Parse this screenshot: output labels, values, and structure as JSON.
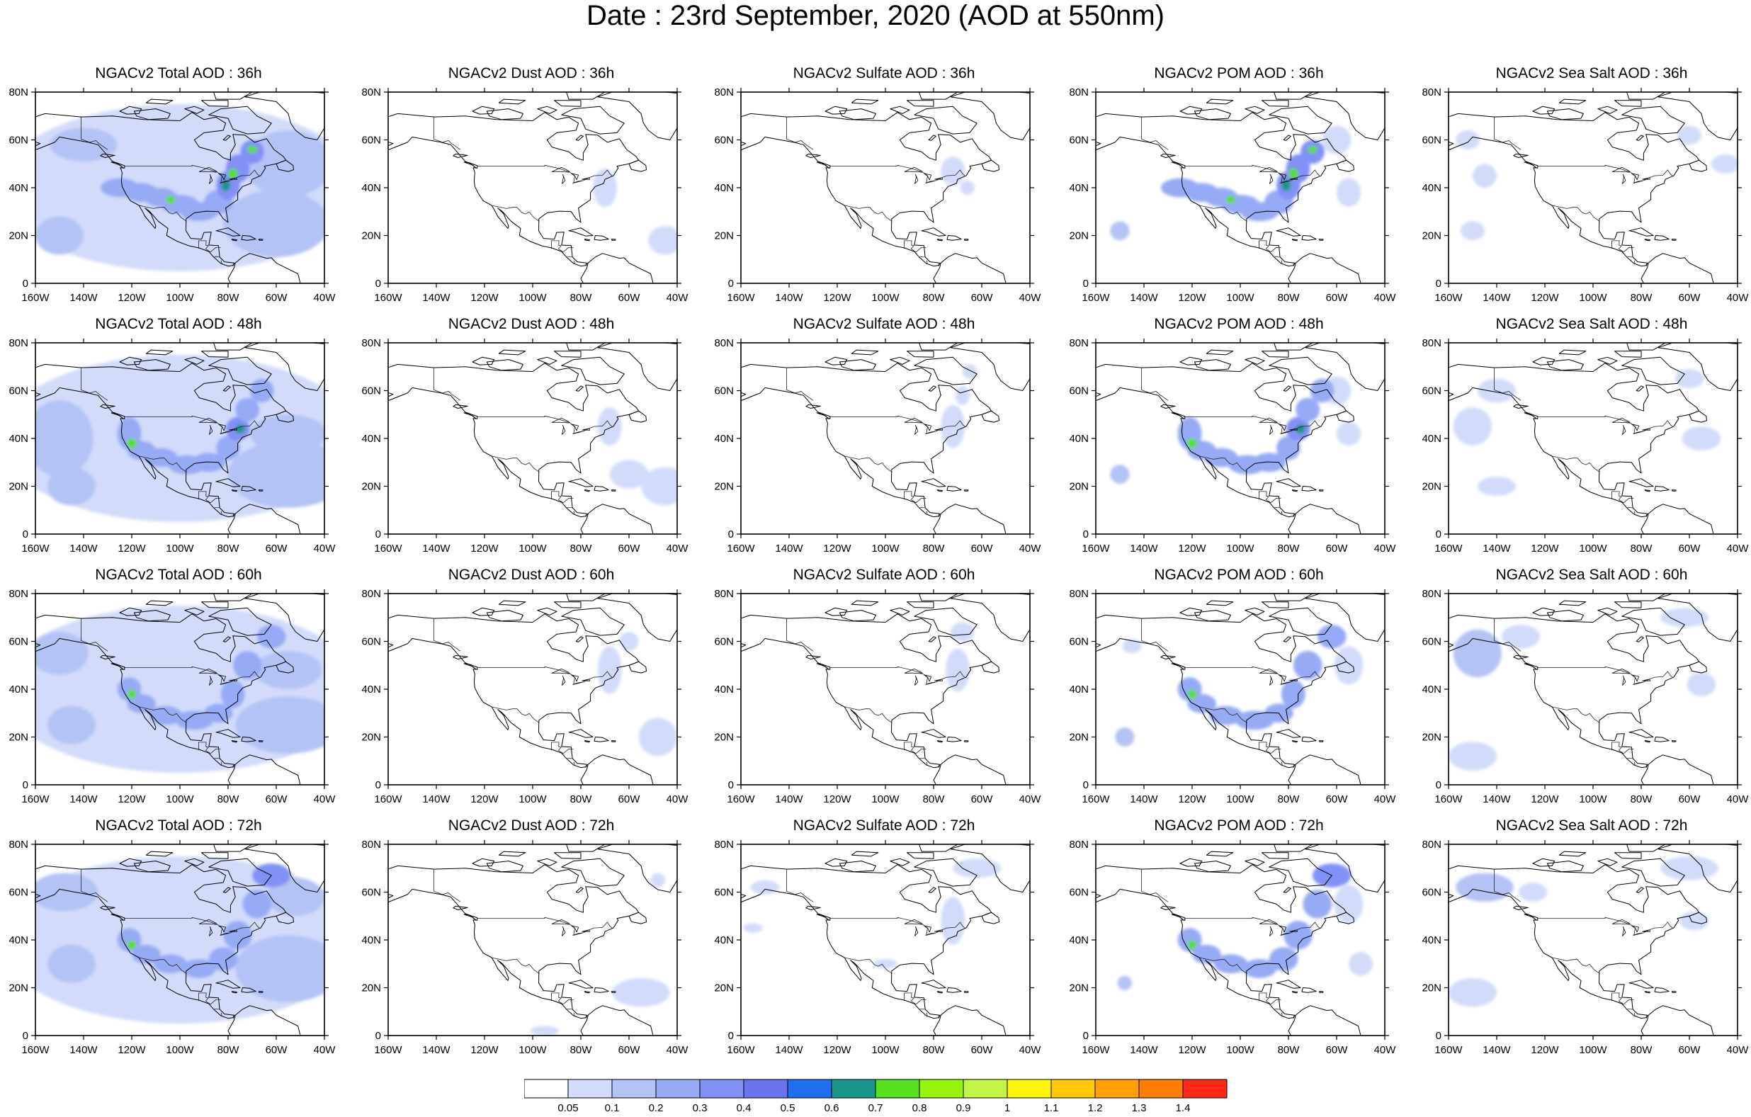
{
  "title": "Date : 23rd  September, 2020 (AOD at 550nm)",
  "panels": [
    {
      "title": "NGACv2 Total AOD : 36h",
      "species": "total",
      "hour": 36
    },
    {
      "title": "NGACv2 Dust AOD : 36h",
      "species": "dust",
      "hour": 36
    },
    {
      "title": "NGACv2 Sulfate AOD : 36h",
      "species": "sulfate",
      "hour": 36
    },
    {
      "title": "NGACv2 POM AOD : 36h",
      "species": "pom",
      "hour": 36
    },
    {
      "title": "NGACv2 Sea Salt AOD : 36h",
      "species": "seasalt",
      "hour": 36
    },
    {
      "title": "NGACv2 Total AOD : 48h",
      "species": "total",
      "hour": 48
    },
    {
      "title": "NGACv2 Dust AOD : 48h",
      "species": "dust",
      "hour": 48
    },
    {
      "title": "NGACv2 Sulfate AOD : 48h",
      "species": "sulfate",
      "hour": 48
    },
    {
      "title": "NGACv2 POM AOD : 48h",
      "species": "pom",
      "hour": 48
    },
    {
      "title": "NGACv2 Sea Salt AOD : 48h",
      "species": "seasalt",
      "hour": 48
    },
    {
      "title": "NGACv2 Total AOD : 60h",
      "species": "total",
      "hour": 60
    },
    {
      "title": "NGACv2 Dust AOD : 60h",
      "species": "dust",
      "hour": 60
    },
    {
      "title": "NGACv2 Sulfate AOD : 60h",
      "species": "sulfate",
      "hour": 60
    },
    {
      "title": "NGACv2 POM AOD : 60h",
      "species": "pom",
      "hour": 60
    },
    {
      "title": "NGACv2 Sea Salt AOD : 60h",
      "species": "seasalt",
      "hour": 60
    },
    {
      "title": "NGACv2 Total AOD : 72h",
      "species": "total",
      "hour": 72
    },
    {
      "title": "NGACv2 Dust AOD : 72h",
      "species": "dust",
      "hour": 72
    },
    {
      "title": "NGACv2 Sulfate AOD : 72h",
      "species": "sulfate",
      "hour": 72
    },
    {
      "title": "NGACv2 POM AOD : 72h",
      "species": "pom",
      "hour": 72
    },
    {
      "title": "NGACv2 Sea Salt  AOD : 72h",
      "species": "seasalt",
      "hour": 72
    }
  ],
  "map": {
    "lon_range": [
      -160,
      -40
    ],
    "lat_range": [
      0,
      80
    ],
    "lon_ticks": [
      -160,
      -140,
      -120,
      -100,
      -80,
      -60,
      -40
    ],
    "lon_tick_labels": [
      "160W",
      "140W",
      "120W",
      "100W",
      "80W",
      "60W",
      "40W"
    ],
    "lat_ticks": [
      0,
      20,
      40,
      60,
      80
    ],
    "lat_tick_labels": [
      "0",
      "20N",
      "40N",
      "60N",
      "80N"
    ]
  },
  "colorbar": {
    "colors": [
      "#ffffff",
      "#d2dcfa",
      "#b4c3f5",
      "#96aaf5",
      "#8291f5",
      "#6973ee",
      "#1e6ef0",
      "#19968c",
      "#55e11e",
      "#96f50a",
      "#c3f547",
      "#fff500",
      "#ffc800",
      "#ffa000",
      "#ff7d00",
      "#ff2814"
    ],
    "labels": [
      "0.05",
      "0.1",
      "0.2",
      "0.3",
      "0.4",
      "0.5",
      "0.6",
      "0.7",
      "0.8",
      "0.9",
      "1",
      "1.1",
      "1.2",
      "1.3",
      "1.4"
    ]
  }
}
